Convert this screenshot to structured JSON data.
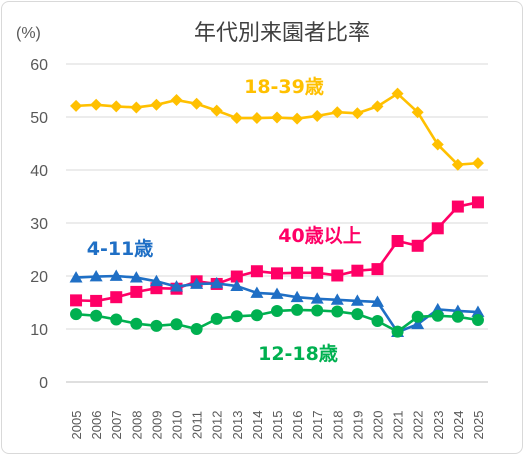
{
  "chart_data": {
    "type": "line",
    "title": "年代別来園者比率",
    "ylabel": "(%)",
    "xlabel": "",
    "ylim": [
      0,
      60
    ],
    "yticks": [
      0,
      10,
      20,
      30,
      40,
      50,
      60
    ],
    "grid": true,
    "categories": [
      "2005",
      "2006",
      "2007",
      "2008",
      "2009",
      "2010",
      "2011",
      "2012",
      "2013",
      "2014",
      "2015",
      "2016",
      "2017",
      "2018",
      "2019",
      "2020",
      "2021",
      "2022",
      "2023",
      "2024",
      "2025"
    ],
    "series": [
      {
        "name": "18-39歳",
        "color": "#FFC000",
        "marker": "diamond",
        "values": [
          52.1,
          52.3,
          52.0,
          51.8,
          52.3,
          53.2,
          52.5,
          51.2,
          49.8,
          49.8,
          49.9,
          49.7,
          50.2,
          50.9,
          50.7,
          52.0,
          54.4,
          50.9,
          44.8,
          41.0,
          41.3
        ]
      },
      {
        "name": "40歳以上",
        "color": "#FF0066",
        "marker": "square",
        "values": [
          15.4,
          15.3,
          16.0,
          17.0,
          17.7,
          17.6,
          19.0,
          18.5,
          19.9,
          20.9,
          20.5,
          20.6,
          20.6,
          20.1,
          21.0,
          21.3,
          26.6,
          25.7,
          29.0,
          33.1,
          33.9
        ]
      },
      {
        "name": "4-11歳",
        "color": "#1F6FC5",
        "marker": "triangle",
        "values": [
          19.7,
          19.9,
          20.0,
          19.7,
          19.0,
          18.0,
          18.5,
          18.6,
          18.1,
          16.8,
          16.6,
          16.0,
          15.7,
          15.5,
          15.3,
          15.1,
          9.4,
          10.9,
          13.7,
          13.4,
          13.2
        ]
      },
      {
        "name": "12-18歳",
        "color": "#00B050",
        "marker": "circle",
        "values": [
          12.8,
          12.5,
          11.8,
          11.0,
          10.6,
          10.9,
          10.0,
          11.9,
          12.4,
          12.6,
          13.4,
          13.6,
          13.5,
          13.3,
          12.8,
          11.5,
          9.5,
          12.3,
          12.5,
          12.3,
          11.7
        ]
      }
    ]
  }
}
